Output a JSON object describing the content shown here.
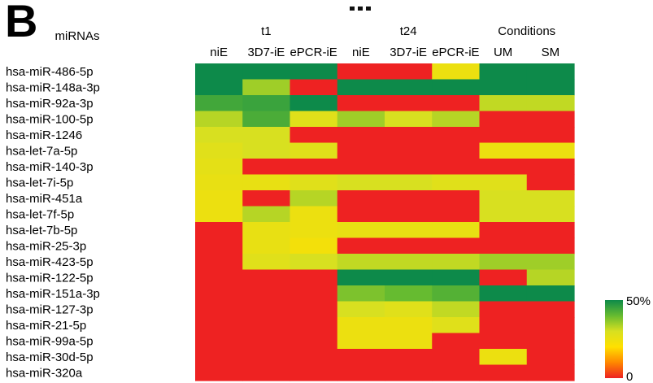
{
  "panel_label": "B",
  "chart_data": {
    "type": "heatmap",
    "row_header": "miRNAs",
    "groups": [
      {
        "label": "t1",
        "columns": [
          0,
          1,
          2
        ]
      },
      {
        "label": "t24",
        "columns": [
          3,
          4,
          5
        ]
      },
      {
        "label": "Conditions",
        "columns": [
          6,
          7
        ]
      }
    ],
    "columns": [
      "niE",
      "3D7-iE",
      "ePCR-iE",
      "niE",
      "3D7-iE",
      "ePCR-iE",
      "UM",
      "SM"
    ],
    "rows": [
      "hsa-miR-486-5p",
      "hsa-miR-148a-3p",
      "hsa-miR-92a-3p",
      "hsa-miR-100-5p",
      "hsa-miR-1246",
      "hsa-let-7a-5p",
      "hsa-miR-140-3p",
      "hsa-let-7i-5p",
      "hsa-miR-451a",
      "hsa-let-7f-5p",
      "hsa-let-7b-5p",
      "hsa-miR-25-3p",
      "hsa-miR-423-5p",
      "hsa-miR-122-5p",
      "hsa-miR-151a-3p",
      "hsa-miR-127-3p",
      "hsa-miR-21-5p",
      "hsa-miR-99a-5p",
      "hsa-miR-30d-5p",
      "hsa-miR-320a"
    ],
    "values": [
      [
        50,
        50,
        50,
        0,
        0,
        25,
        50,
        50
      ],
      [
        50,
        35,
        0,
        50,
        50,
        50,
        50,
        50
      ],
      [
        44,
        45,
        50,
        0,
        0,
        0,
        32,
        32
      ],
      [
        33,
        43,
        28,
        35,
        30,
        33,
        0,
        0
      ],
      [
        30,
        30,
        0,
        0,
        0,
        0,
        0,
        0
      ],
      [
        28,
        30,
        28,
        0,
        0,
        0,
        25,
        25
      ],
      [
        27,
        0,
        0,
        0,
        0,
        0,
        0,
        0
      ],
      [
        26,
        26,
        28,
        30,
        30,
        28,
        28,
        0
      ],
      [
        25,
        0,
        33,
        0,
        0,
        0,
        30,
        30
      ],
      [
        25,
        33,
        25,
        0,
        0,
        0,
        30,
        30
      ],
      [
        0,
        26,
        25,
        26,
        26,
        26,
        0,
        0
      ],
      [
        0,
        26,
        23,
        0,
        0,
        0,
        0,
        0
      ],
      [
        0,
        28,
        30,
        32,
        32,
        32,
        35,
        35
      ],
      [
        0,
        0,
        0,
        50,
        50,
        50,
        0,
        33
      ],
      [
        0,
        0,
        0,
        38,
        40,
        42,
        50,
        50
      ],
      [
        0,
        0,
        0,
        30,
        28,
        32,
        0,
        0
      ],
      [
        0,
        0,
        0,
        25,
        25,
        28,
        0,
        0
      ],
      [
        0,
        0,
        0,
        25,
        25,
        0,
        0,
        0
      ],
      [
        0,
        0,
        0,
        0,
        0,
        0,
        25,
        0
      ],
      [
        0,
        0,
        0,
        0,
        0,
        0,
        0,
        0
      ]
    ],
    "colorbar": {
      "min": 0,
      "max": 50,
      "min_label": "0",
      "max_label": "50%"
    },
    "color_stops": [
      "#ee2222",
      "#ff8800",
      "#ffe000",
      "#d8e020",
      "#66bb30",
      "#0d8a4a"
    ]
  }
}
